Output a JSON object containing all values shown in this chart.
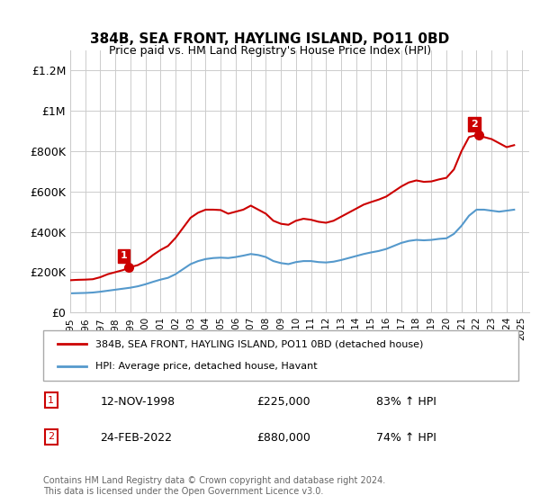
{
  "title": "384B, SEA FRONT, HAYLING ISLAND, PO11 0BD",
  "subtitle": "Price paid vs. HM Land Registry's House Price Index (HPI)",
  "ylabel_ticks": [
    "£0",
    "£200K",
    "£400K",
    "£600K",
    "£800K",
    "£1M",
    "£1.2M"
  ],
  "ytick_values": [
    0,
    200000,
    400000,
    600000,
    800000,
    1000000,
    1200000
  ],
  "ylim": [
    0,
    1300000
  ],
  "xlim_start": 1995.0,
  "xlim_end": 2025.5,
  "red_color": "#cc0000",
  "blue_color": "#5599cc",
  "background_color": "#ffffff",
  "grid_color": "#cccccc",
  "sale1_x": 1998.87,
  "sale1_y": 225000,
  "sale1_label": "1",
  "sale2_x": 2022.15,
  "sale2_y": 880000,
  "sale2_label": "2",
  "legend_red_label": "384B, SEA FRONT, HAYLING ISLAND, PO11 0BD (detached house)",
  "legend_blue_label": "HPI: Average price, detached house, Havant",
  "annotation1_date": "12-NOV-1998",
  "annotation1_price": "£225,000",
  "annotation1_hpi": "83% ↑ HPI",
  "annotation2_date": "24-FEB-2022",
  "annotation2_price": "£880,000",
  "annotation2_hpi": "74% ↑ HPI",
  "footer": "Contains HM Land Registry data © Crown copyright and database right 2024.\nThis data is licensed under the Open Government Licence v3.0.",
  "hpi_years": [
    1995,
    1995.5,
    1996,
    1996.5,
    1997,
    1997.5,
    1998,
    1998.5,
    1999,
    1999.5,
    2000,
    2000.5,
    2001,
    2001.5,
    2002,
    2002.5,
    2003,
    2003.5,
    2004,
    2004.5,
    2005,
    2005.5,
    2006,
    2006.5,
    2007,
    2007.5,
    2008,
    2008.5,
    2009,
    2009.5,
    2010,
    2010.5,
    2011,
    2011.5,
    2012,
    2012.5,
    2013,
    2013.5,
    2014,
    2014.5,
    2015,
    2015.5,
    2016,
    2016.5,
    2017,
    2017.5,
    2018,
    2018.5,
    2019,
    2019.5,
    2020,
    2020.5,
    2021,
    2021.5,
    2022,
    2022.5,
    2023,
    2023.5,
    2024,
    2024.5
  ],
  "hpi_values": [
    95000,
    96000,
    97000,
    99000,
    103000,
    108000,
    113000,
    118000,
    123000,
    130000,
    140000,
    152000,
    163000,
    172000,
    190000,
    215000,
    240000,
    255000,
    265000,
    270000,
    272000,
    270000,
    275000,
    282000,
    290000,
    285000,
    275000,
    255000,
    245000,
    240000,
    250000,
    255000,
    255000,
    250000,
    248000,
    252000,
    260000,
    270000,
    280000,
    290000,
    298000,
    305000,
    315000,
    330000,
    345000,
    355000,
    360000,
    358000,
    360000,
    365000,
    368000,
    390000,
    430000,
    480000,
    510000,
    510000,
    505000,
    500000,
    505000,
    510000
  ],
  "red_years": [
    1995,
    1995.5,
    1996,
    1996.5,
    1997,
    1997.5,
    1998,
    1998.5,
    1999,
    1999.5,
    2000,
    2000.5,
    2001,
    2001.5,
    2002,
    2002.5,
    2003,
    2003.5,
    2004,
    2004.5,
    2005,
    2005.5,
    2006,
    2006.5,
    2007,
    2007.5,
    2008,
    2008.5,
    2009,
    2009.5,
    2010,
    2010.5,
    2011,
    2011.5,
    2012,
    2012.5,
    2013,
    2013.5,
    2014,
    2014.5,
    2015,
    2015.5,
    2016,
    2016.5,
    2017,
    2017.5,
    2018,
    2018.5,
    2019,
    2019.5,
    2020,
    2020.5,
    2021,
    2021.5,
    2022,
    2022.5,
    2023,
    2023.5,
    2024,
    2024.5
  ],
  "red_values": [
    160000,
    162000,
    163000,
    165000,
    175000,
    190000,
    200000,
    210000,
    225000,
    235000,
    255000,
    285000,
    310000,
    330000,
    370000,
    420000,
    470000,
    495000,
    510000,
    510000,
    508000,
    490000,
    500000,
    510000,
    530000,
    510000,
    490000,
    455000,
    440000,
    435000,
    455000,
    465000,
    460000,
    450000,
    445000,
    455000,
    475000,
    495000,
    515000,
    535000,
    548000,
    560000,
    575000,
    600000,
    625000,
    645000,
    655000,
    648000,
    650000,
    660000,
    668000,
    710000,
    800000,
    870000,
    880000,
    870000,
    860000,
    840000,
    820000,
    830000
  ]
}
